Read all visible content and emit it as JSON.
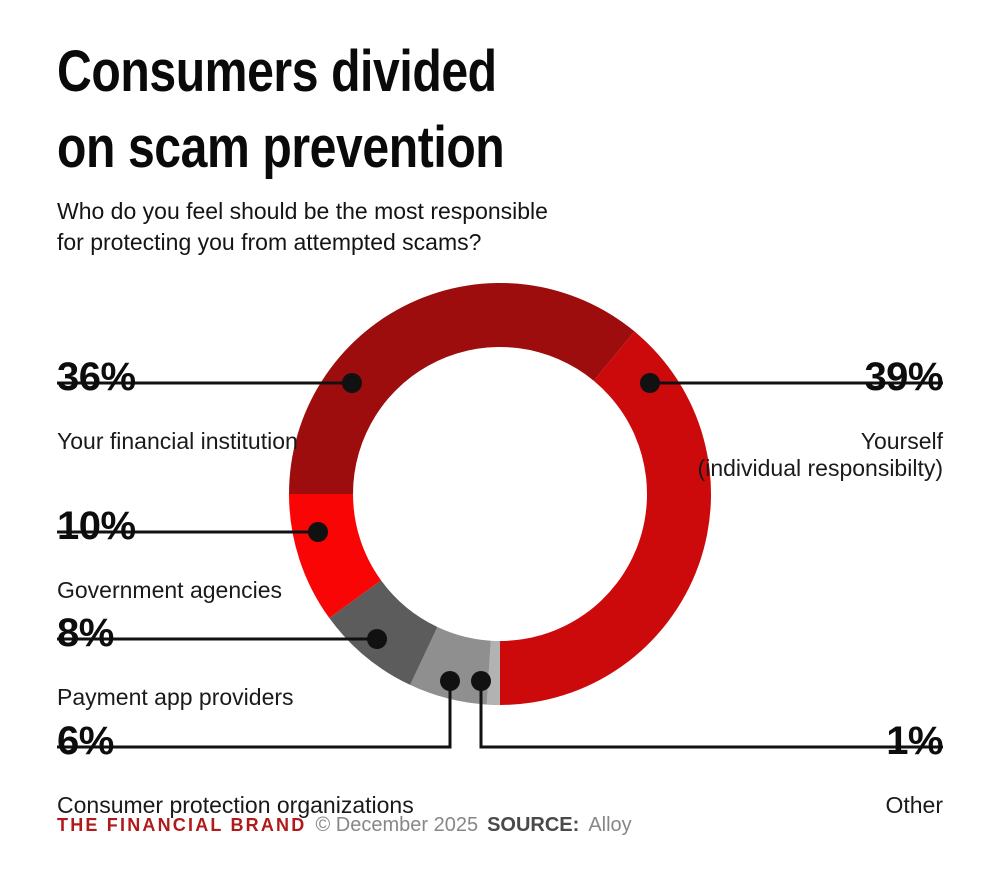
{
  "title": "Consumers divided\non scam prevention",
  "subtitle": "Who do you feel should be the most responsible\nfor protecting you from attempted scams?",
  "chart_data": {
    "type": "pie",
    "variant": "donut",
    "title": "Who do you feel should be the most responsible for protecting you from attempted scams?",
    "rotation_deg": 39.6,
    "legend_position": "callouts",
    "segments": [
      {
        "label": "Yourself",
        "sublabel": "(individual responsibilty)",
        "pct": "39%",
        "value": 39,
        "color": "#cc0a0c"
      },
      {
        "label": "Other",
        "sublabel": "",
        "pct": "1%",
        "value": 1,
        "color": "#b2b2b2"
      },
      {
        "label": "Consumer protection organizations",
        "sublabel": "",
        "pct": "6%",
        "value": 6,
        "color": "#8f8f8f"
      },
      {
        "label": "Payment app providers",
        "sublabel": "",
        "pct": "8%",
        "value": 8,
        "color": "#5c5c5c"
      },
      {
        "label": "Government agencies",
        "sublabel": "",
        "pct": "10%",
        "value": 10,
        "color": "#f90505"
      },
      {
        "label": "Your financial institution",
        "sublabel": "",
        "pct": "36%",
        "value": 36,
        "color": "#9d0d0d"
      }
    ]
  },
  "footer": {
    "brand": "THE FINANCIAL BRAND",
    "brand_color": "#b11a1a",
    "copyright": "© December 2025",
    "source_label": "SOURCE:",
    "source_value": "Alloy"
  }
}
